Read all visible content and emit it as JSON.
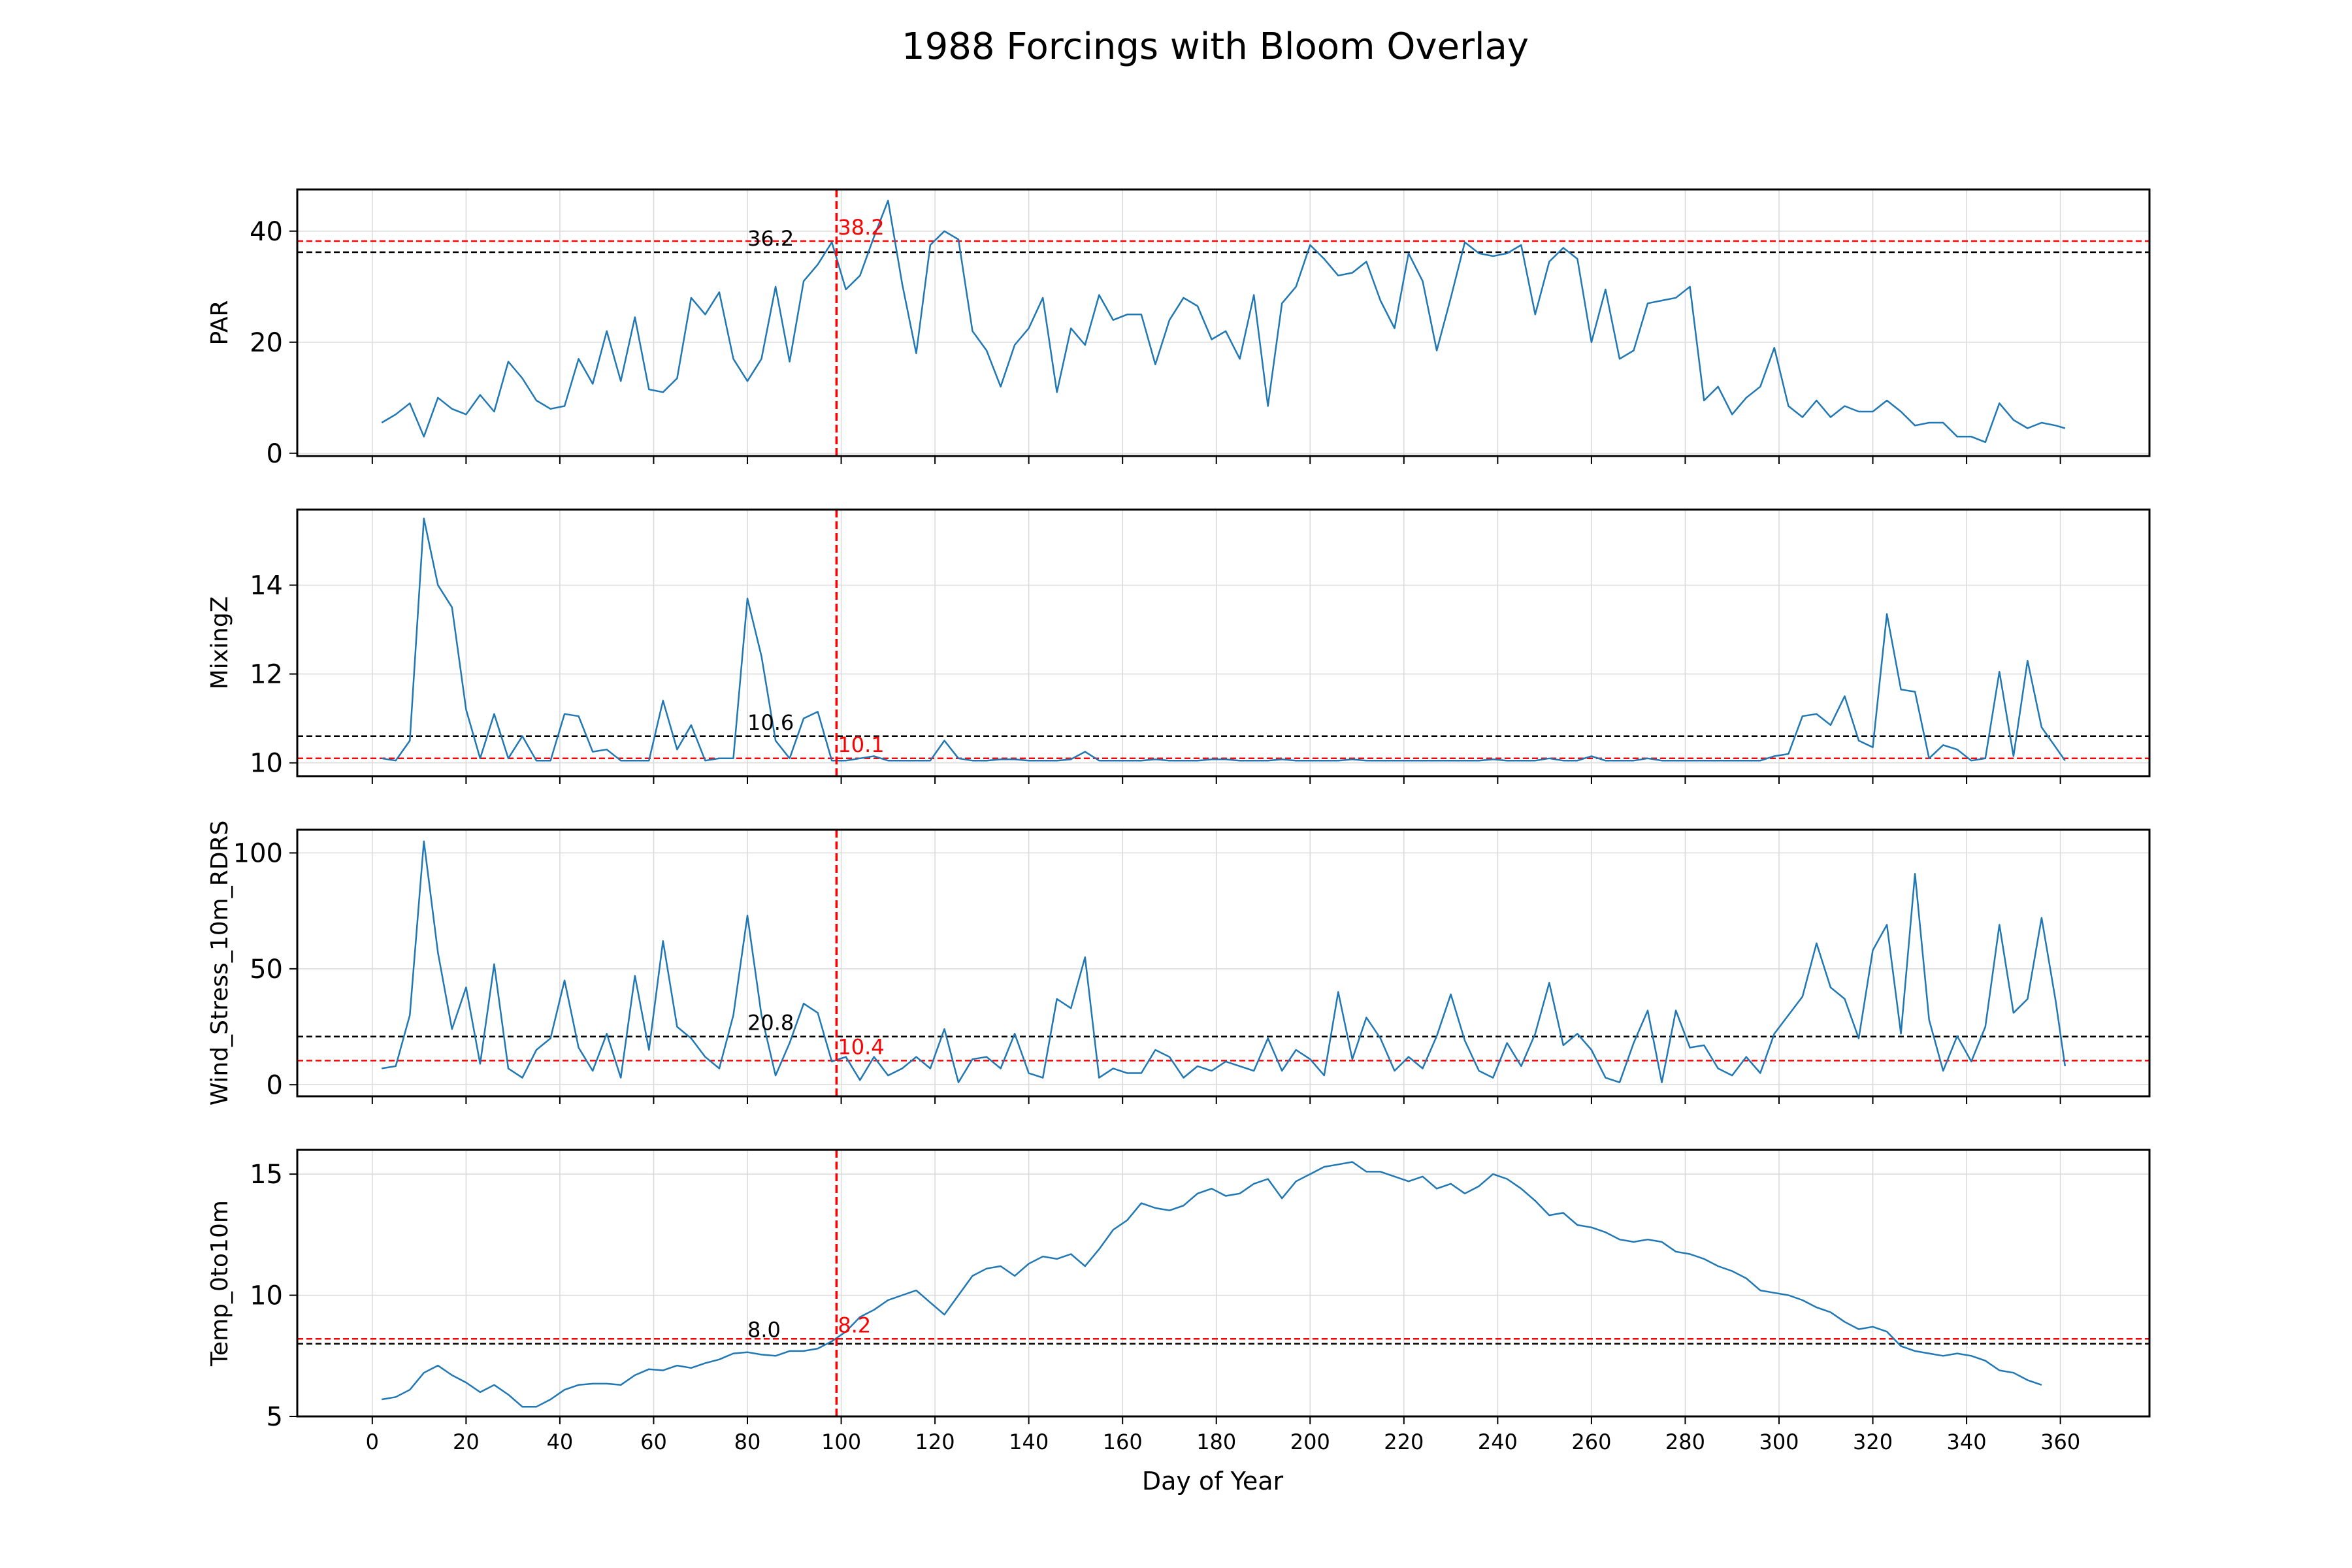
{
  "suptitle": "1988 Forcings with Bloom Overlay",
  "xlabel": "Day of Year",
  "colors": {
    "series": "#1f77b4",
    "bloom": "#ff0000",
    "mean": "#000000",
    "grid": "#d9d9d9",
    "axes": "#000000"
  },
  "chart_data": {
    "type": "line",
    "x": [
      2,
      5,
      8,
      11,
      14,
      17,
      20,
      23,
      26,
      29,
      32,
      35,
      38,
      41,
      44,
      47,
      50,
      53,
      56,
      59,
      62,
      65,
      68,
      71,
      74,
      77,
      80,
      83,
      86,
      89,
      92,
      95,
      98,
      101,
      104,
      107,
      110,
      113,
      116,
      119,
      122,
      125,
      128,
      131,
      134,
      137,
      140,
      143,
      146,
      149,
      152,
      155,
      158,
      161,
      164,
      167,
      170,
      173,
      176,
      179,
      182,
      185,
      188,
      191,
      194,
      197,
      200,
      203,
      206,
      209,
      212,
      215,
      218,
      221,
      224,
      227,
      230,
      233,
      236,
      239,
      242,
      245,
      248,
      251,
      254,
      257,
      260,
      263,
      266,
      269,
      272,
      275,
      278,
      281,
      284,
      287,
      290,
      293,
      296,
      299,
      302,
      305,
      308,
      311,
      314,
      317,
      320,
      323,
      326,
      329,
      332,
      335,
      338,
      341,
      344,
      347,
      350,
      353,
      356,
      359,
      361
    ],
    "xlim": [
      -16,
      379
    ],
    "xticks": [
      "0",
      "20",
      "40",
      "60",
      "80",
      "100",
      "120",
      "140",
      "160",
      "180",
      "200",
      "220",
      "240",
      "260",
      "280",
      "300",
      "320",
      "340",
      "360"
    ],
    "bloom_day": 99,
    "panels": [
      {
        "ylabel": "PAR",
        "ylim": [
          -0.5,
          47.5
        ],
        "yticks": [
          "0",
          "20",
          "40"
        ],
        "threshold_overall": {
          "value": 36.2,
          "label": "36.2"
        },
        "threshold_bloom": {
          "value": 38.2,
          "label": "38.2"
        },
        "values": [
          5.5,
          7,
          9,
          3,
          10,
          8,
          7,
          10.5,
          7.5,
          16.5,
          13.5,
          9.5,
          8,
          8.5,
          17,
          12.5,
          22,
          13,
          24.5,
          11.5,
          11,
          13.5,
          28,
          25,
          29,
          17,
          13,
          17,
          30,
          16.5,
          31,
          34,
          38,
          29.5,
          32,
          39,
          45.5,
          30.5,
          18,
          37.5,
          40,
          38.5,
          22,
          18.5,
          12,
          19.5,
          22.5,
          28,
          11,
          22.5,
          19.5,
          28.5,
          24,
          25,
          25,
          16,
          24,
          28,
          26.5,
          20.5,
          22,
          17,
          28.5,
          8.5,
          27,
          30,
          37.5,
          35,
          32,
          32.5,
          34.5,
          27.5,
          22.5,
          36,
          31,
          18.5,
          28,
          38,
          36,
          35.5,
          36,
          37.5,
          25,
          34.5,
          37,
          35,
          20,
          29.5,
          17,
          18.5,
          27,
          27.5,
          28,
          30,
          9.5,
          12,
          7,
          10,
          12,
          19,
          8.5,
          6.5,
          9.5,
          6.5,
          8.5,
          7.5,
          7.5,
          9.5,
          7.5,
          5,
          5.5,
          5.5,
          3,
          3,
          2,
          9,
          6,
          4.5,
          5.5,
          5,
          4.5
        ]
      },
      {
        "ylabel": "MixingZ",
        "ylim": [
          9.7,
          15.7
        ],
        "yticks": [
          "10",
          "12",
          "14"
        ],
        "threshold_overall": {
          "value": 10.6,
          "label": "10.6"
        },
        "threshold_bloom": {
          "value": 10.1,
          "label": "10.1"
        },
        "values": [
          10.1,
          10.05,
          10.5,
          15.5,
          14,
          13.5,
          11.2,
          10.1,
          11.1,
          10.1,
          10.6,
          10.05,
          10.05,
          11.1,
          11.05,
          10.25,
          10.3,
          10.05,
          10.05,
          10.05,
          11.4,
          10.3,
          10.85,
          10.05,
          10.1,
          10.1,
          13.7,
          12.4,
          10.5,
          10.1,
          11,
          11.15,
          10.05,
          10.05,
          10.1,
          10.15,
          10.05,
          10.05,
          10.05,
          10.05,
          10.5,
          10.1,
          10.05,
          10.05,
          10.08,
          10.08,
          10.05,
          10.05,
          10.05,
          10.08,
          10.25,
          10.05,
          10.05,
          10.05,
          10.05,
          10.08,
          10.05,
          10.05,
          10.05,
          10.08,
          10.08,
          10.05,
          10.05,
          10.05,
          10.08,
          10.05,
          10.05,
          10.05,
          10.05,
          10.08,
          10.05,
          10.05,
          10.05,
          10.05,
          10.05,
          10.05,
          10.05,
          10.05,
          10.05,
          10.08,
          10.05,
          10.05,
          10.05,
          10.1,
          10.05,
          10.05,
          10.15,
          10.05,
          10.05,
          10.05,
          10.1,
          10.05,
          10.05,
          10.05,
          10.05,
          10.05,
          10.05,
          10.05,
          10.05,
          10.15,
          10.2,
          11.05,
          11.1,
          10.85,
          11.5,
          10.5,
          10.35,
          13.35,
          11.65,
          11.6,
          10.1,
          10.4,
          10.3,
          10.05,
          10.1,
          12.05,
          10.15,
          12.3,
          10.8,
          10.35,
          10.05
        ]
      },
      {
        "ylabel": "Wind_Stress_10m_RDRS",
        "ylim": [
          -5,
          110
        ],
        "yticks": [
          "0",
          "50",
          "100"
        ],
        "threshold_overall": {
          "value": 20.8,
          "label": "20.8"
        },
        "threshold_bloom": {
          "value": 10.4,
          "label": "10.4"
        },
        "values": [
          7,
          8,
          30,
          105,
          57,
          24,
          42,
          9,
          52,
          7,
          3,
          15,
          20,
          45,
          16,
          6,
          22,
          3,
          47,
          15,
          62,
          25,
          20,
          12,
          7,
          30,
          73,
          30,
          4,
          18,
          35,
          31,
          10,
          12,
          2,
          12,
          4,
          7,
          12,
          7,
          24,
          1,
          11,
          12,
          7,
          22,
          5,
          3,
          37,
          33,
          55,
          3,
          7,
          5,
          5,
          15,
          12,
          3,
          8,
          6,
          10,
          8,
          6,
          20,
          6,
          15,
          11,
          4,
          40,
          11,
          29,
          20,
          6,
          12,
          7,
          21,
          39,
          19,
          6,
          3,
          18,
          8,
          22,
          44,
          17,
          22,
          15,
          3,
          1,
          18,
          32,
          1,
          32,
          16,
          17,
          7,
          4,
          12,
          5,
          22,
          30,
          38,
          61,
          42,
          37,
          20,
          58,
          69,
          22,
          91,
          28,
          6,
          21,
          10,
          25,
          69,
          31,
          37,
          72,
          36,
          8
        ]
      },
      {
        "ylabel": "Temp_0to10m",
        "ylim": [
          5,
          16
        ],
        "yticks": [
          "5",
          "10",
          "15"
        ],
        "threshold_overall": {
          "value": 8.0,
          "label": "8.0"
        },
        "threshold_bloom": {
          "value": 8.2,
          "label": "8.2"
        },
        "values": [
          5.7,
          5.8,
          6.1,
          6.8,
          7.1,
          6.7,
          6.4,
          6.0,
          6.3,
          5.9,
          5.4,
          5.4,
          5.7,
          6.1,
          6.3,
          6.35,
          6.35,
          6.3,
          6.7,
          6.95,
          6.9,
          7.1,
          7.0,
          7.2,
          7.35,
          7.6,
          7.65,
          7.55,
          7.5,
          7.7,
          7.7,
          7.8,
          8.1,
          8.5,
          9.1,
          9.4,
          9.8,
          10.0,
          10.2,
          9.7,
          9.2,
          10.0,
          10.8,
          11.1,
          11.2,
          10.8,
          11.3,
          11.6,
          11.5,
          11.7,
          11.2,
          11.9,
          12.7,
          13.1,
          13.8,
          13.6,
          13.5,
          13.7,
          14.2,
          14.4,
          14.1,
          14.2,
          14.6,
          14.8,
          14.0,
          14.7,
          15.0,
          15.3,
          15.4,
          15.5,
          15.1,
          15.1,
          14.9,
          14.7,
          14.9,
          14.4,
          14.6,
          14.2,
          14.5,
          15.0,
          14.8,
          14.4,
          13.9,
          13.3,
          13.4,
          12.9,
          12.8,
          12.6,
          12.3,
          12.2,
          12.3,
          12.2,
          11.8,
          11.7,
          11.5,
          11.2,
          11.0,
          10.7,
          10.2,
          10.1,
          10.0,
          9.8,
          9.5,
          9.3,
          8.9,
          8.6,
          8.7,
          8.5,
          7.9,
          7.7,
          7.6,
          7.5,
          7.6,
          7.5,
          7.3,
          6.9,
          6.8,
          6.5,
          6.3
        ]
      }
    ]
  }
}
